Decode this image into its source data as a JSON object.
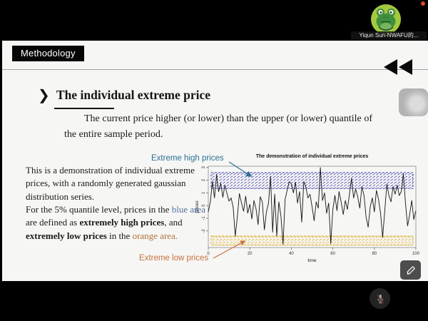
{
  "meeting": {
    "participant_name": "Yiqun Sun-NWAFU的...",
    "avatar_icon": "frog-avatar",
    "recording_dot_color": "#d84b2a",
    "mic_status": "muted"
  },
  "slide": {
    "section_label": "Methodology",
    "bullet_glyph": "❯",
    "title": "The individual extreme price",
    "lead_paragraph": "The current price higher (or lower) than the upper (or lower) quantile of the entire sample period.",
    "description": [
      [
        {
          "text": "This is a demonstration of individual extreme prices, with a randomly generated gaussian distribution series.",
          "style": "normal"
        }
      ],
      [
        {
          "text": "For the 5% quantile level, prices in the ",
          "style": "normal"
        },
        {
          "text": "blue area",
          "style": "blue"
        },
        {
          "text": " are defined as ",
          "style": "normal"
        },
        {
          "text": "extremely high prices",
          "style": "bold"
        },
        {
          "text": ", and ",
          "style": "normal"
        },
        {
          "text": "extremely low prices",
          "style": "bold"
        },
        {
          "text": " in the ",
          "style": "normal"
        },
        {
          "text": "orange area.",
          "style": "orange"
        }
      ]
    ],
    "blue_text_color": "#51709e",
    "orange_text_color": "#b4713a",
    "annotations": {
      "high_label": "Extreme high prices",
      "high_color": "#2d6f96",
      "low_label": "Extreme low prices",
      "low_color": "#c4713c"
    }
  },
  "chart_data": {
    "type": "line",
    "title": "The demonstration of individual extreme prices",
    "xlabel": "time",
    "ylabel": "prices",
    "xlim": [
      0,
      100
    ],
    "ylim": [
      -3.3,
      3.1
    ],
    "xticks": [
      0,
      20,
      40,
      60,
      80,
      100
    ],
    "yticks": [
      3,
      2,
      1,
      0,
      -1,
      -2
    ],
    "x_start": 0,
    "x_step": 1,
    "values": [
      -0.5,
      0.3,
      1.9,
      0.6,
      2.45,
      1.1,
      1.75,
      0.65,
      1.6,
      0.95,
      0.35,
      0.6,
      -0.15,
      -2.4,
      -0.9,
      0.95,
      0.2,
      -0.45,
      0.75,
      -0.6,
      0.1,
      -1.05,
      0.4,
      -0.25,
      -1.5,
      0.7,
      0.3,
      -1.9,
      -0.5,
      0.2,
      2.3,
      -2.1,
      0.9,
      -2.4,
      0.3,
      -0.8,
      -3.05,
      0.5,
      1.2,
      1.9,
      1.7,
      1.0,
      1.85,
      0.2,
      1.1,
      -1.3,
      1.9,
      1.45,
      0.6,
      0.9,
      -0.1,
      -1.2,
      0.3,
      -0.2,
      3.0,
      0.4,
      1.0,
      -0.6,
      0.2,
      -3.0,
      -0.3,
      0.8,
      -0.4,
      1.1,
      0.3,
      -0.7,
      0.4,
      -0.3,
      0.9,
      2.15,
      0.6,
      1.3,
      0.7,
      -0.2,
      1.5,
      0.8,
      -0.9,
      -1.7,
      -0.1,
      0.6,
      -0.5,
      1.2,
      0.5,
      -0.6,
      -2.5,
      -0.4,
      1.7,
      0.8,
      0.3,
      1.5,
      0.9,
      1.6,
      0.8,
      1.1,
      2.5,
      0.2,
      -1.6,
      -0.7,
      0.4,
      -1.1,
      -0.4
    ],
    "extreme_high_band": [
      1.35,
      2.6
    ],
    "extreme_low_band": [
      -3.1,
      -2.4
    ],
    "line_color": "#141414",
    "high_band_color": "#2a2aae",
    "low_band_color": "#d9a516",
    "grid": false,
    "legend": "none"
  }
}
